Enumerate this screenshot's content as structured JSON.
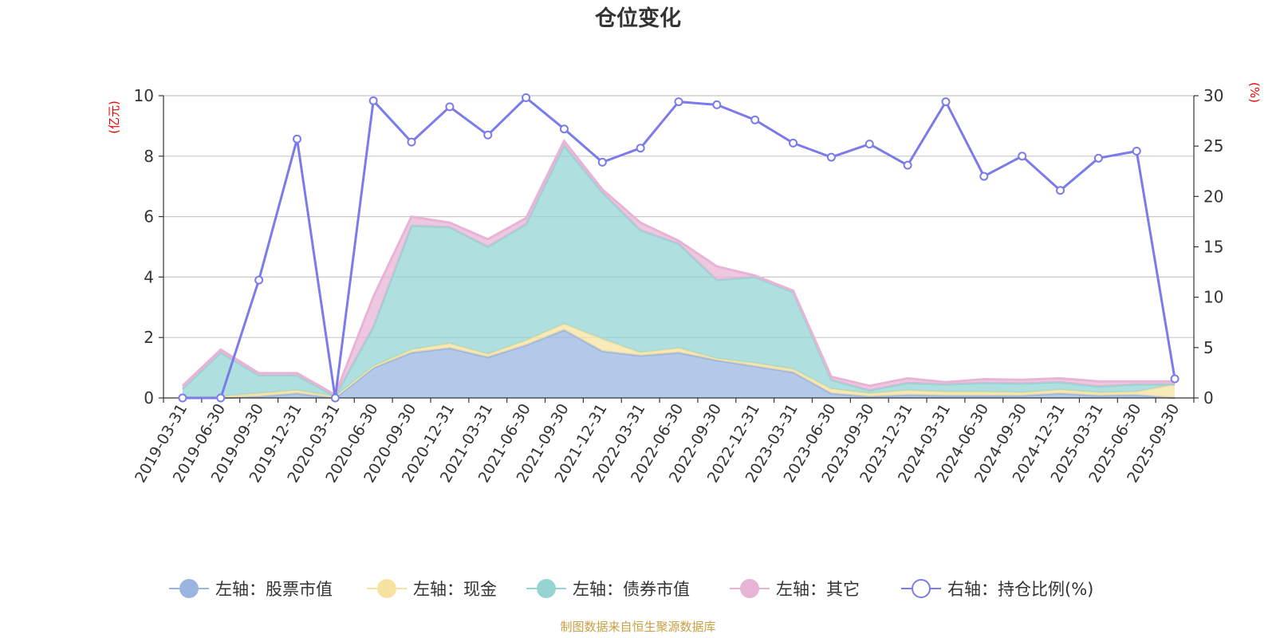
{
  "chart_data": {
    "type": "area",
    "title": "仓位变化",
    "source_note": "制图数据来自恒生聚源数据库",
    "left_axis": {
      "unit": "(亿元)",
      "min": 0,
      "max": 10,
      "ticks": [
        0,
        2,
        4,
        6,
        8,
        10
      ]
    },
    "right_axis": {
      "unit": "(%)",
      "min": 0,
      "max": 30,
      "ticks": [
        0,
        5,
        10,
        15,
        20,
        25,
        30
      ]
    },
    "x": [
      "2019-03-31",
      "2019-06-30",
      "2019-09-30",
      "2019-12-31",
      "2020-03-31",
      "2020-06-30",
      "2020-09-30",
      "2020-12-31",
      "2021-03-31",
      "2021-06-30",
      "2021-09-30",
      "2021-12-31",
      "2022-03-31",
      "2022-06-30",
      "2022-09-30",
      "2022-12-31",
      "2023-03-31",
      "2023-06-30",
      "2023-09-30",
      "2023-12-31",
      "2024-03-31",
      "2024-06-30",
      "2024-09-30",
      "2024-12-31",
      "2025-03-31",
      "2025-06-30",
      "2025-09-30"
    ],
    "grid": true,
    "legend_position": "bottom",
    "series": [
      {
        "name": "左轴：股票市值",
        "axis": "left",
        "kind": "stacked-area",
        "color": "#9bb5e0",
        "values": [
          0.0,
          0.0,
          0.05,
          0.15,
          0.0,
          1.0,
          1.5,
          1.65,
          1.35,
          1.75,
          2.25,
          1.55,
          1.4,
          1.5,
          1.25,
          1.05,
          0.85,
          0.15,
          0.05,
          0.1,
          0.08,
          0.08,
          0.08,
          0.15,
          0.08,
          0.1,
          0.0
        ]
      },
      {
        "name": "左轴：现金",
        "axis": "left",
        "kind": "stacked-area",
        "color": "#f7e3a1",
        "values": [
          0.0,
          0.05,
          0.1,
          0.1,
          0.05,
          0.05,
          0.1,
          0.15,
          0.1,
          0.15,
          0.2,
          0.4,
          0.1,
          0.15,
          0.05,
          0.1,
          0.1,
          0.15,
          0.1,
          0.15,
          0.12,
          0.12,
          0.1,
          0.12,
          0.1,
          0.1,
          0.45
        ]
      },
      {
        "name": "左轴：债券市值",
        "axis": "left",
        "kind": "stacked-area",
        "color": "#96d4d4",
        "values": [
          0.3,
          1.45,
          0.6,
          0.5,
          0.0,
          1.3,
          4.1,
          3.85,
          3.55,
          3.85,
          5.9,
          4.85,
          4.05,
          3.45,
          2.6,
          2.85,
          2.55,
          0.3,
          0.1,
          0.25,
          0.25,
          0.3,
          0.3,
          0.25,
          0.2,
          0.25,
          0.0
        ]
      },
      {
        "name": "左轴：其它",
        "axis": "left",
        "kind": "stacked-area",
        "color": "#e8b4d6",
        "values": [
          0.1,
          0.1,
          0.07,
          0.07,
          0.05,
          1.0,
          0.3,
          0.15,
          0.25,
          0.2,
          0.15,
          0.1,
          0.25,
          0.1,
          0.45,
          0.05,
          0.05,
          0.1,
          0.15,
          0.15,
          0.07,
          0.12,
          0.12,
          0.13,
          0.17,
          0.1,
          0.1
        ]
      },
      {
        "name": "右轴：持仓比例(%)",
        "axis": "right",
        "kind": "line",
        "color": "#7b7bea",
        "values": [
          0.0,
          0.0,
          11.7,
          25.7,
          0.0,
          29.5,
          25.4,
          28.9,
          26.1,
          29.8,
          26.7,
          23.4,
          24.8,
          29.4,
          29.1,
          27.6,
          25.3,
          23.9,
          25.2,
          23.1,
          29.4,
          22.0,
          24.0,
          20.6,
          23.8,
          24.5,
          1.9
        ]
      }
    ]
  }
}
